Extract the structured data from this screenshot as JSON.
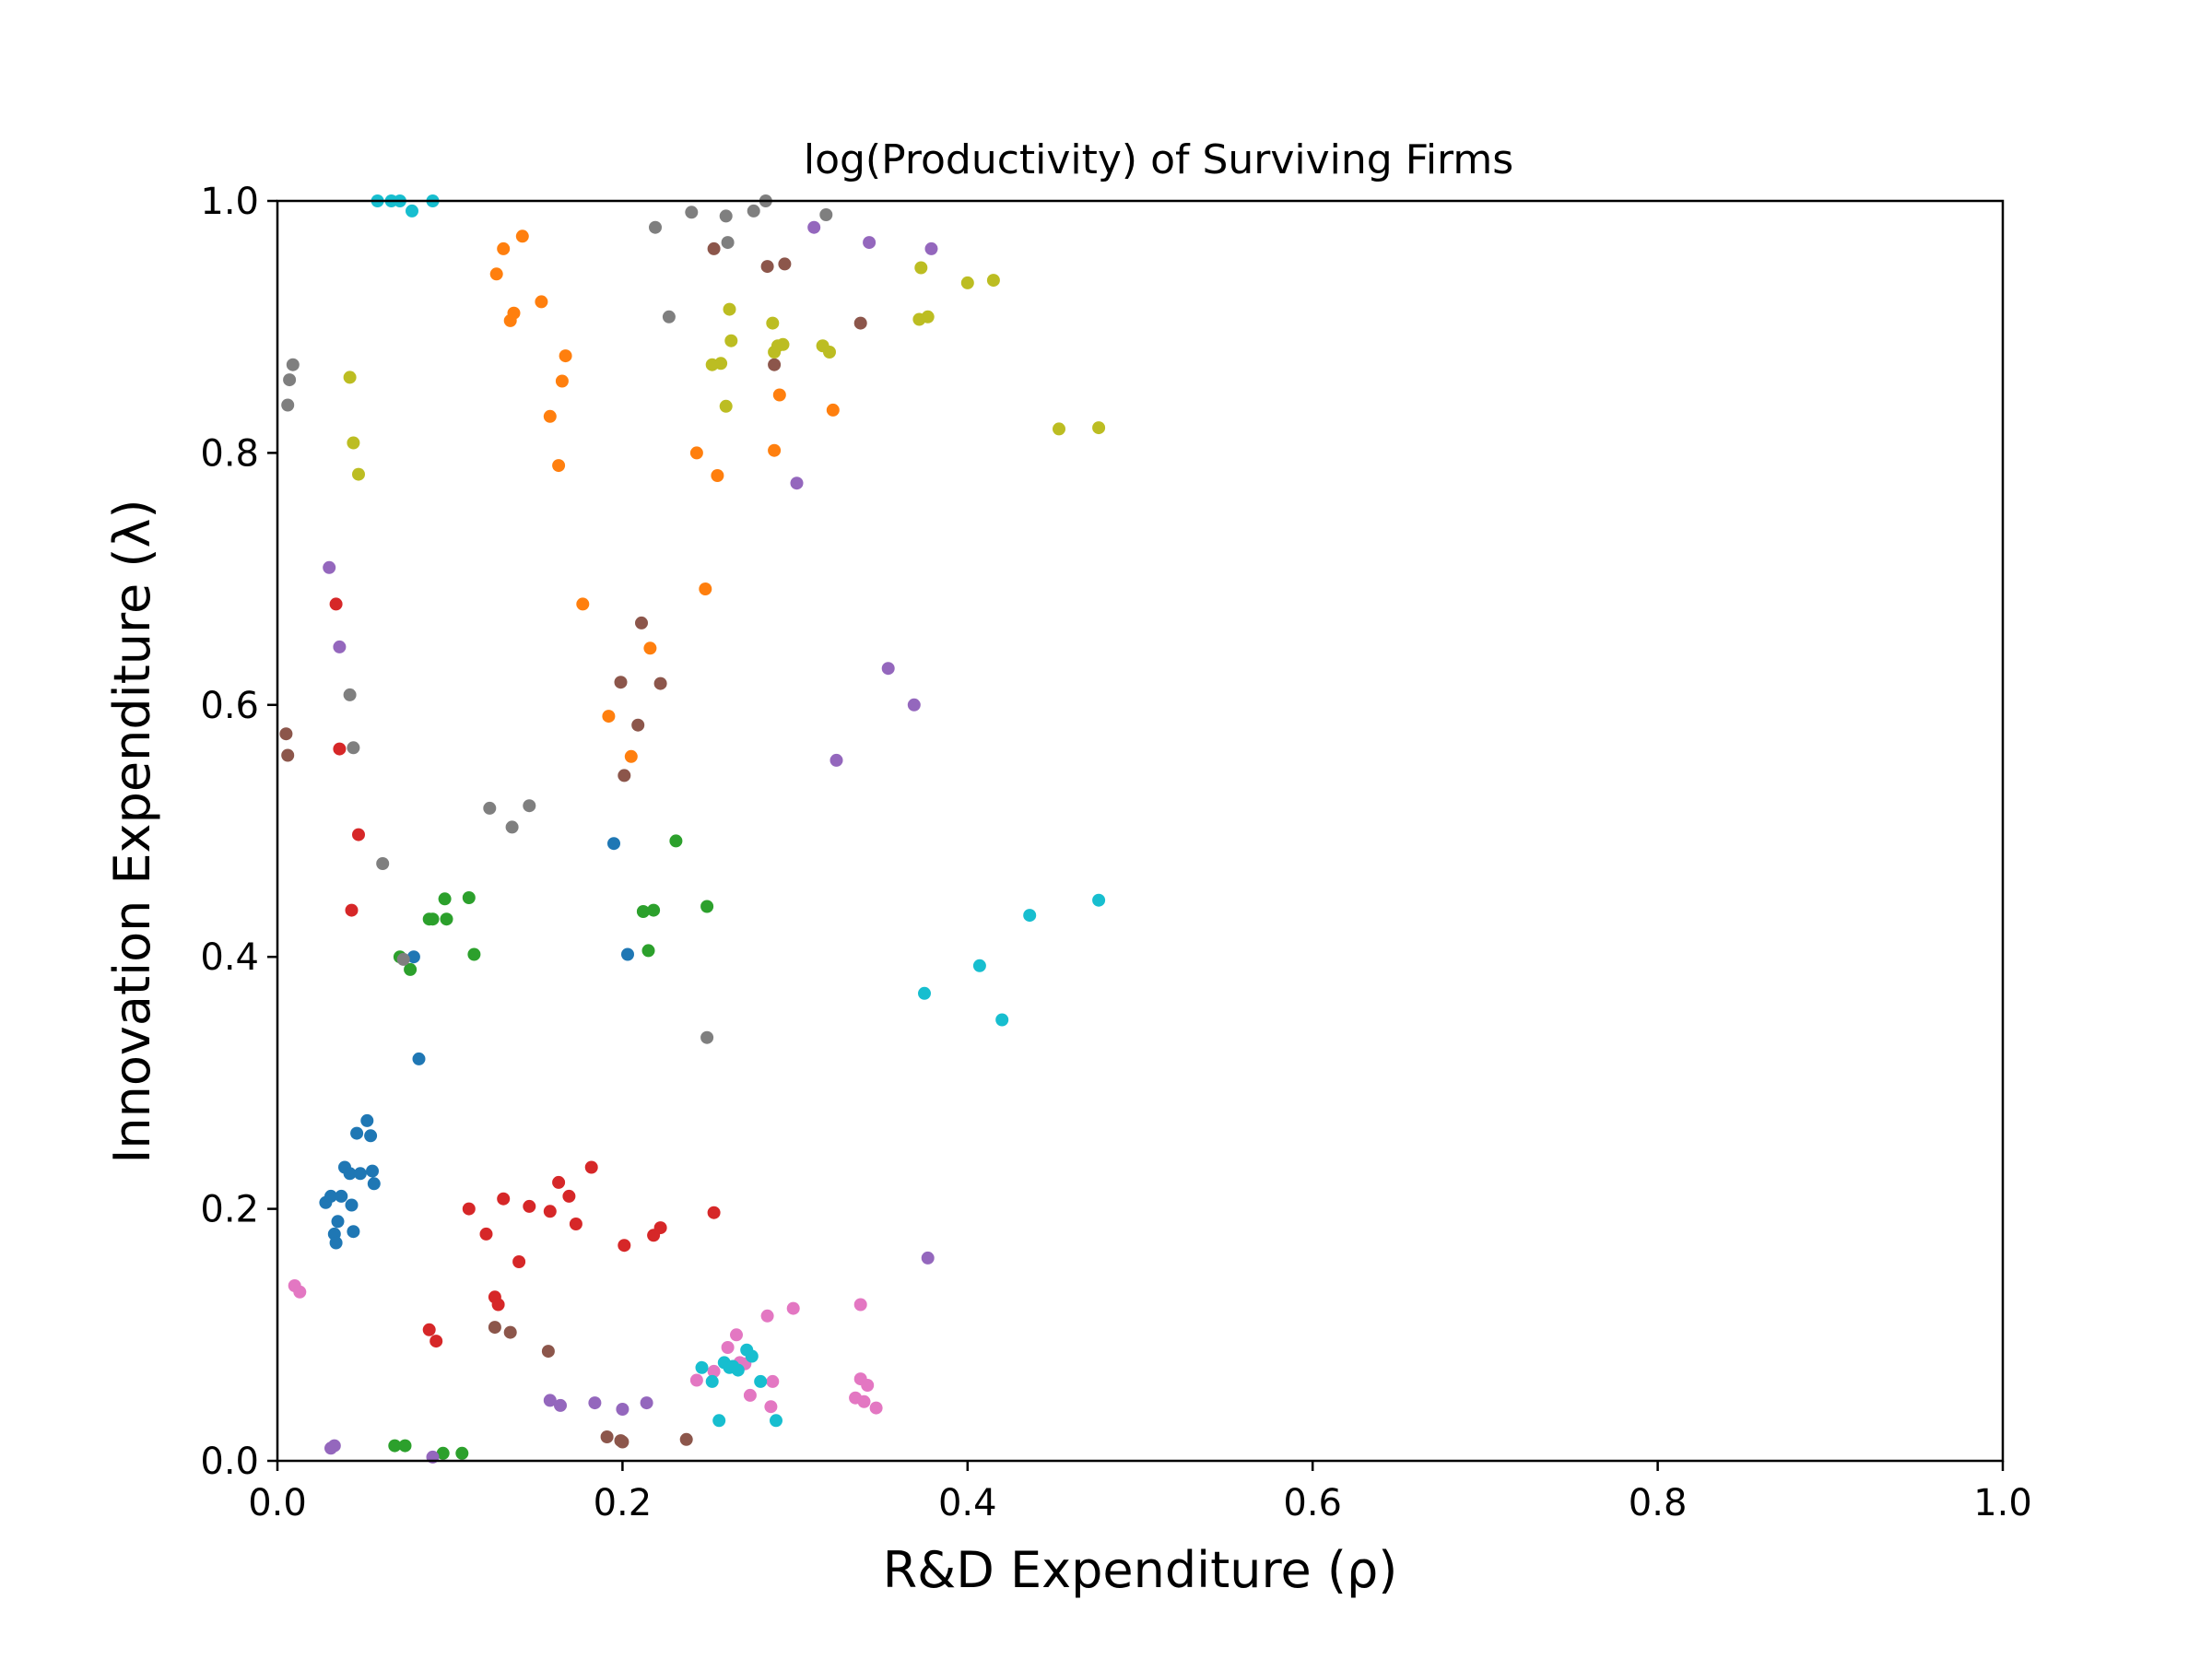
{
  "chart_data": {
    "type": "scatter",
    "title": "log(Productivity) of Surviving Firms",
    "xlabel": "R&D Expenditure (ρ)",
    "ylabel": "Innovation Expenditure (λ)",
    "xlim": [
      0,
      1
    ],
    "ylim": [
      0,
      1
    ],
    "xticks": [
      "0.0",
      "0.2",
      "0.4",
      "0.6",
      "0.8",
      "1.0"
    ],
    "yticks": [
      "0.0",
      "0.2",
      "0.4",
      "0.6",
      "0.8",
      "1.0"
    ],
    "grid": false,
    "legend": "none",
    "series": [
      {
        "color": "#1f77b4",
        "points": [
          [
            0.028,
            0.205
          ],
          [
            0.031,
            0.21
          ],
          [
            0.033,
            0.18
          ],
          [
            0.034,
            0.173
          ],
          [
            0.035,
            0.19
          ],
          [
            0.037,
            0.21
          ],
          [
            0.039,
            0.233
          ],
          [
            0.042,
            0.228
          ],
          [
            0.043,
            0.203
          ],
          [
            0.044,
            0.182
          ],
          [
            0.046,
            0.26
          ],
          [
            0.048,
            0.228
          ],
          [
            0.052,
            0.27
          ],
          [
            0.054,
            0.258
          ],
          [
            0.055,
            0.23
          ],
          [
            0.056,
            0.22
          ],
          [
            0.079,
            0.4
          ],
          [
            0.082,
            0.319
          ],
          [
            0.195,
            0.49
          ],
          [
            0.203,
            0.402
          ]
        ]
      },
      {
        "color": "#ff7f0e",
        "points": [
          [
            0.127,
            0.942
          ],
          [
            0.131,
            0.962
          ],
          [
            0.135,
            0.905
          ],
          [
            0.137,
            0.911
          ],
          [
            0.142,
            0.972
          ],
          [
            0.153,
            0.92
          ],
          [
            0.158,
            0.829
          ],
          [
            0.163,
            0.79
          ],
          [
            0.165,
            0.857
          ],
          [
            0.167,
            0.877
          ],
          [
            0.177,
            0.68
          ],
          [
            0.192,
            0.591
          ],
          [
            0.205,
            0.559
          ],
          [
            0.216,
            0.645
          ],
          [
            0.243,
            0.8
          ],
          [
            0.248,
            0.692
          ],
          [
            0.255,
            0.782
          ],
          [
            0.288,
            0.802
          ],
          [
            0.291,
            0.846
          ],
          [
            0.322,
            0.834
          ]
        ]
      },
      {
        "color": "#2ca02c",
        "points": [
          [
            0.068,
            0.012
          ],
          [
            0.071,
            0.4
          ],
          [
            0.074,
            0.012
          ],
          [
            0.077,
            0.39
          ],
          [
            0.088,
            0.43
          ],
          [
            0.09,
            0.43
          ],
          [
            0.096,
            0.006
          ],
          [
            0.097,
            0.446
          ],
          [
            0.098,
            0.43
          ],
          [
            0.107,
            0.006
          ],
          [
            0.111,
            0.447
          ],
          [
            0.114,
            0.402
          ],
          [
            0.212,
            0.436
          ],
          [
            0.215,
            0.405
          ],
          [
            0.218,
            0.437
          ],
          [
            0.231,
            0.492
          ],
          [
            0.249,
            0.44
          ]
        ]
      },
      {
        "color": "#d62728",
        "points": [
          [
            0.034,
            0.68
          ],
          [
            0.036,
            0.565
          ],
          [
            0.043,
            0.437
          ],
          [
            0.047,
            0.497
          ],
          [
            0.088,
            0.104
          ],
          [
            0.092,
            0.095
          ],
          [
            0.111,
            0.2
          ],
          [
            0.121,
            0.18
          ],
          [
            0.126,
            0.13
          ],
          [
            0.128,
            0.124
          ],
          [
            0.131,
            0.208
          ],
          [
            0.14,
            0.158
          ],
          [
            0.146,
            0.202
          ],
          [
            0.158,
            0.198
          ],
          [
            0.163,
            0.221
          ],
          [
            0.169,
            0.21
          ],
          [
            0.173,
            0.188
          ],
          [
            0.182,
            0.233
          ],
          [
            0.201,
            0.171
          ],
          [
            0.218,
            0.179
          ],
          [
            0.222,
            0.185
          ],
          [
            0.253,
            0.197
          ]
        ]
      },
      {
        "color": "#9467bd",
        "points": [
          [
            0.031,
            0.01
          ],
          [
            0.033,
            0.012
          ],
          [
            0.03,
            0.709
          ],
          [
            0.036,
            0.646
          ],
          [
            0.09,
            0.003
          ],
          [
            0.158,
            0.048
          ],
          [
            0.164,
            0.044
          ],
          [
            0.184,
            0.046
          ],
          [
            0.2,
            0.041
          ],
          [
            0.214,
            0.046
          ],
          [
            0.301,
            0.776
          ],
          [
            0.311,
            0.979
          ],
          [
            0.324,
            0.556
          ],
          [
            0.343,
            0.967
          ],
          [
            0.354,
            0.629
          ],
          [
            0.369,
            0.6
          ],
          [
            0.377,
            0.161
          ],
          [
            0.379,
            0.962
          ]
        ]
      },
      {
        "color": "#8c564b",
        "points": [
          [
            0.005,
            0.577
          ],
          [
            0.006,
            0.56
          ],
          [
            0.126,
            0.106
          ],
          [
            0.135,
            0.102
          ],
          [
            0.157,
            0.087
          ],
          [
            0.191,
            0.019
          ],
          [
            0.199,
            0.016
          ],
          [
            0.2,
            0.015
          ],
          [
            0.199,
            0.618
          ],
          [
            0.201,
            0.544
          ],
          [
            0.209,
            0.584
          ],
          [
            0.211,
            0.665
          ],
          [
            0.222,
            0.617
          ],
          [
            0.237,
            0.017
          ],
          [
            0.253,
            0.962
          ],
          [
            0.284,
            0.948
          ],
          [
            0.288,
            0.87
          ],
          [
            0.294,
            0.95
          ],
          [
            0.338,
            0.903
          ]
        ]
      },
      {
        "color": "#e377c2",
        "points": [
          [
            0.01,
            0.139
          ],
          [
            0.013,
            0.134
          ],
          [
            0.243,
            0.064
          ],
          [
            0.253,
            0.071
          ],
          [
            0.261,
            0.09
          ],
          [
            0.266,
            0.1
          ],
          [
            0.268,
            0.078
          ],
          [
            0.271,
            0.077
          ],
          [
            0.274,
            0.052
          ],
          [
            0.284,
            0.115
          ],
          [
            0.286,
            0.043
          ],
          [
            0.287,
            0.063
          ],
          [
            0.299,
            0.121
          ],
          [
            0.335,
            0.05
          ],
          [
            0.338,
            0.124
          ],
          [
            0.338,
            0.065
          ],
          [
            0.34,
            0.047
          ],
          [
            0.342,
            0.06
          ],
          [
            0.347,
            0.042
          ]
        ]
      },
      {
        "color": "#7f7f7f",
        "points": [
          [
            0.006,
            0.838
          ],
          [
            0.007,
            0.858
          ],
          [
            0.009,
            0.87
          ],
          [
            0.042,
            0.608
          ],
          [
            0.044,
            0.566
          ],
          [
            0.061,
            0.474
          ],
          [
            0.073,
            0.398
          ],
          [
            0.123,
            0.518
          ],
          [
            0.136,
            0.503
          ],
          [
            0.146,
            0.52
          ],
          [
            0.219,
            0.979
          ],
          [
            0.227,
            0.908
          ],
          [
            0.24,
            0.991
          ],
          [
            0.249,
            0.336
          ],
          [
            0.26,
            0.988
          ],
          [
            0.261,
            0.967
          ],
          [
            0.276,
            0.992
          ],
          [
            0.283,
            1.0
          ],
          [
            0.318,
            0.989
          ]
        ]
      },
      {
        "color": "#bcbd22",
        "points": [
          [
            0.042,
            0.86
          ],
          [
            0.044,
            0.808
          ],
          [
            0.047,
            0.783
          ],
          [
            0.252,
            0.87
          ],
          [
            0.257,
            0.871
          ],
          [
            0.26,
            0.837
          ],
          [
            0.262,
            0.914
          ],
          [
            0.263,
            0.889
          ],
          [
            0.287,
            0.903
          ],
          [
            0.288,
            0.88
          ],
          [
            0.29,
            0.885
          ],
          [
            0.293,
            0.886
          ],
          [
            0.316,
            0.885
          ],
          [
            0.32,
            0.88
          ],
          [
            0.372,
            0.906
          ],
          [
            0.373,
            0.947
          ],
          [
            0.377,
            0.908
          ],
          [
            0.4,
            0.935
          ],
          [
            0.415,
            0.937
          ],
          [
            0.453,
            0.819
          ],
          [
            0.476,
            0.82
          ]
        ]
      },
      {
        "color": "#17becf",
        "points": [
          [
            0.058,
            1.0
          ],
          [
            0.066,
            1.0
          ],
          [
            0.071,
            1.0
          ],
          [
            0.078,
            0.992
          ],
          [
            0.09,
            1.0
          ],
          [
            0.246,
            0.074
          ],
          [
            0.252,
            0.063
          ],
          [
            0.256,
            0.032
          ],
          [
            0.259,
            0.078
          ],
          [
            0.262,
            0.074
          ],
          [
            0.264,
            0.075
          ],
          [
            0.267,
            0.072
          ],
          [
            0.272,
            0.088
          ],
          [
            0.275,
            0.083
          ],
          [
            0.28,
            0.063
          ],
          [
            0.289,
            0.032
          ],
          [
            0.375,
            0.371
          ],
          [
            0.407,
            0.393
          ],
          [
            0.42,
            0.35
          ],
          [
            0.436,
            0.433
          ],
          [
            0.476,
            0.445
          ]
        ]
      }
    ]
  }
}
